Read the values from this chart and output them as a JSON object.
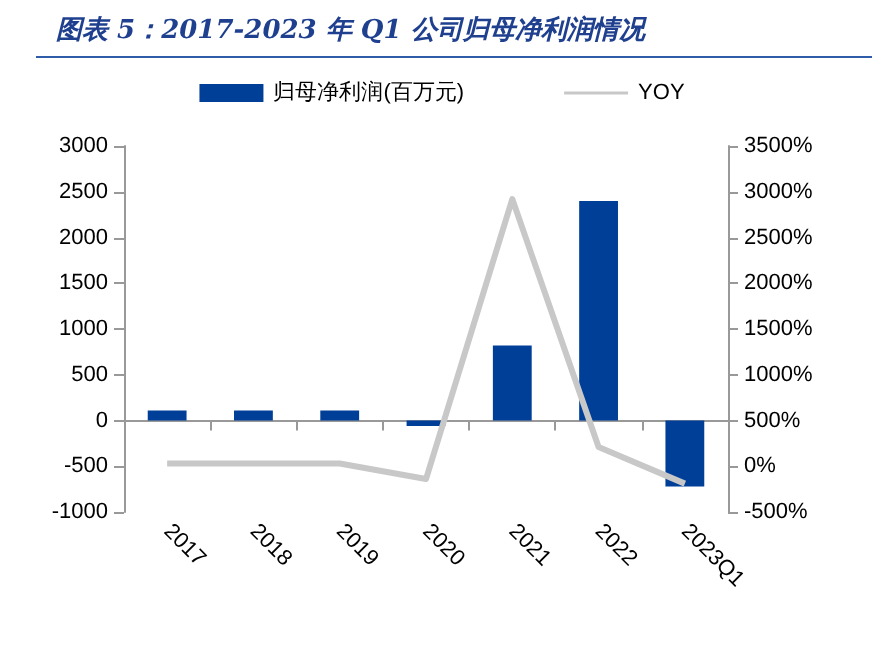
{
  "chart_data": {
    "type": "bar",
    "title": "图表 5：2017-2023 年 Q1 公司归母净利润情况",
    "categories": [
      "2017",
      "2018",
      "2019",
      "2020",
      "2021",
      "2022",
      "2023Q1"
    ],
    "series": [
      {
        "name": "归母净利润(百万元)",
        "color": "#003f98",
        "values": [
          110,
          110,
          110,
          -60,
          820,
          2400,
          -720
        ]
      },
      {
        "name": "YOY",
        "type": "line",
        "axis": "y2",
        "color": "#c8c8c8",
        "values": [
          30,
          30,
          30,
          -140,
          2920,
          210,
          -190
        ]
      }
    ],
    "ylim": [
      -1000,
      3000
    ],
    "yticks": [
      -1000,
      -500,
      0,
      500,
      1000,
      1500,
      2000,
      2500,
      3000
    ],
    "y2lim": [
      -500,
      3500
    ],
    "y2ticks": [
      {
        "value": -500,
        "label": "-500%"
      },
      {
        "value": 0,
        "label": "0%"
      },
      {
        "value": 500,
        "label": "500%"
      },
      {
        "value": 1000,
        "label": "1000%"
      },
      {
        "value": 1500,
        "label": "1500%"
      },
      {
        "value": 2000,
        "label": "2000%"
      },
      {
        "value": 2500,
        "label": "2500%"
      },
      {
        "value": 3000,
        "label": "3000%"
      },
      {
        "value": 3500,
        "label": "3500%"
      }
    ],
    "legend": "top",
    "marker": "none"
  }
}
